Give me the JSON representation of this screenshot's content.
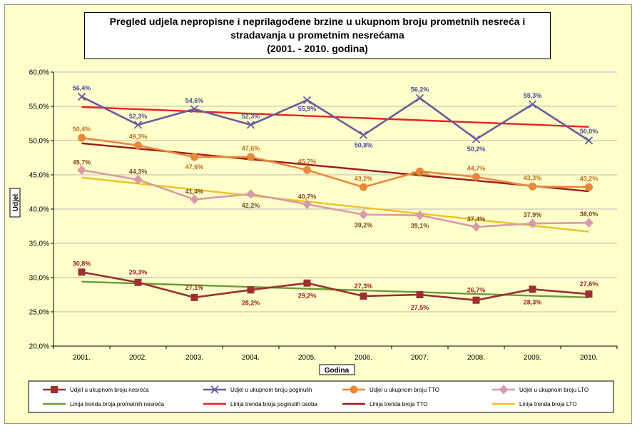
{
  "chart_data": {
    "type": "line",
    "title_lines": [
      "Pregled udjela nepropisne  i neprilagođene brzine u ukupnom broju prometnih nesreća i",
      "stradavanja  u prometnim  nesrećama",
      "(2001. - 2010. godina)"
    ],
    "xlabel": "Godina",
    "ylabel": "Udjel",
    "categories": [
      "2001.",
      "2002.",
      "2003.",
      "2004.",
      "2005.",
      "2006.",
      "2007.",
      "2008.",
      "2009.",
      "2010."
    ],
    "ylim": [
      20,
      60
    ],
    "yticks": [
      20,
      25,
      30,
      35,
      40,
      45,
      50,
      55,
      60
    ],
    "ytick_labels": [
      "20,0%",
      "25,0%",
      "30,0%",
      "35,0%",
      "40,0%",
      "45,0%",
      "50,0%",
      "55,0%",
      "60,0%"
    ],
    "grid": true,
    "legend_position": "bottom",
    "series": [
      {
        "name": "Udjel u ukupnom broju nesreća",
        "color": "#9b3030",
        "marker": "square",
        "values": [
          30.8,
          29.3,
          27.1,
          28.2,
          29.2,
          27.3,
          27.5,
          26.7,
          28.3,
          27.6
        ],
        "labels": [
          "30,8%",
          "29,3%",
          "27,1%",
          "28,2%",
          "29,2%",
          "27,3%",
          "27,5%",
          "26,7%",
          "28,3%",
          "27,6%"
        ]
      },
      {
        "name": "Udjel u ukupnom broju poginulih",
        "color": "#6b5b9b",
        "marker": "x",
        "values": [
          56.4,
          52.3,
          54.6,
          52.3,
          55.9,
          50.8,
          56.2,
          50.2,
          55.3,
          50.0
        ],
        "labels": [
          "56,4%",
          "52,3%",
          "54,6%",
          "52,3%",
          "55,9%",
          "50,8%",
          "56,2%",
          "50,2%",
          "55,3%",
          "50,0%"
        ]
      },
      {
        "name": "Udjel u ukupnom broju TTO",
        "color": "#e8883a",
        "marker": "circle",
        "values": [
          50.4,
          49.3,
          47.6,
          47.6,
          45.7,
          43.2,
          45.5,
          44.7,
          43.3,
          43.2
        ],
        "labels": [
          "50,4%",
          "49,3%",
          "47,6%",
          "47,6%",
          "45,7%",
          "43,2%",
          "45,5%",
          "44,7%",
          "43,3%",
          "43,2%"
        ]
      },
      {
        "name": "Udjel u ukupnom broju LTO",
        "color": "#d99aa8",
        "marker": "diamond",
        "values": [
          45.7,
          44.3,
          41.4,
          42.2,
          40.7,
          39.2,
          39.1,
          37.4,
          37.9,
          38.0
        ],
        "labels": [
          "45,7%",
          "44,3%",
          "41,4%",
          "42,2%",
          "40,7%",
          "39,2%",
          "39,1%",
          "37,4%",
          "37,9%",
          "38,0%"
        ]
      }
    ],
    "trend_lines": [
      {
        "name": "Linija trenda broja prometnih nesreća",
        "color": "#6a9a3a",
        "start": 29.4,
        "end": 27.1
      },
      {
        "name": "Linija trenda broja poginulih osoba",
        "color": "#e82020",
        "start": 54.9,
        "end": 52.0
      },
      {
        "name": "Linija trenda broja TTO",
        "color": "#a01818",
        "start": 49.6,
        "end": 42.6
      },
      {
        "name": "Linija trenda broja LTO",
        "color": "#f0c020",
        "start": 44.6,
        "end": 36.7
      }
    ]
  }
}
